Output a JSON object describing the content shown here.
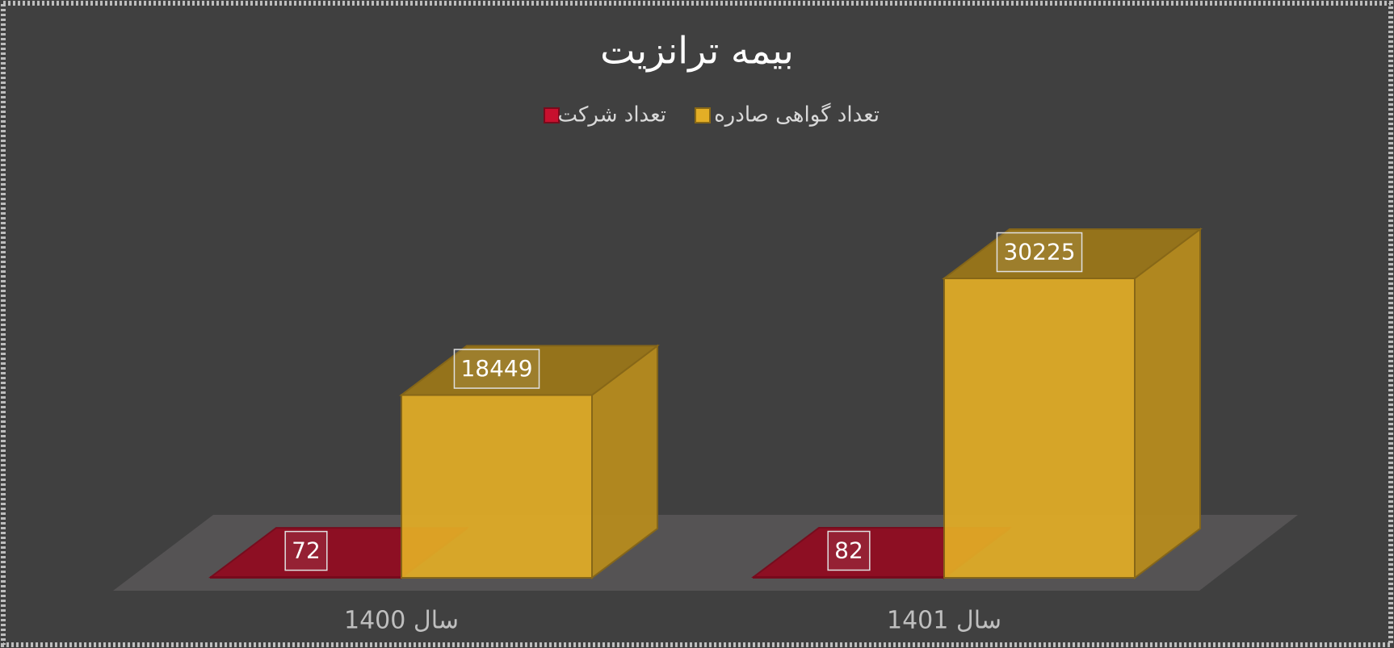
{
  "chart_data": {
    "type": "bar3d",
    "title": "بیمه ترانزیت",
    "categories": [
      "سال 1400",
      "سال 1401"
    ],
    "series": [
      {
        "name": "تعداد شرکت",
        "color": "#c8102e",
        "values": [
          72,
          82
        ]
      },
      {
        "name": "تعداد گواهی صادره",
        "color": "#e3ae26",
        "values": [
          18449,
          30225
        ]
      }
    ]
  }
}
